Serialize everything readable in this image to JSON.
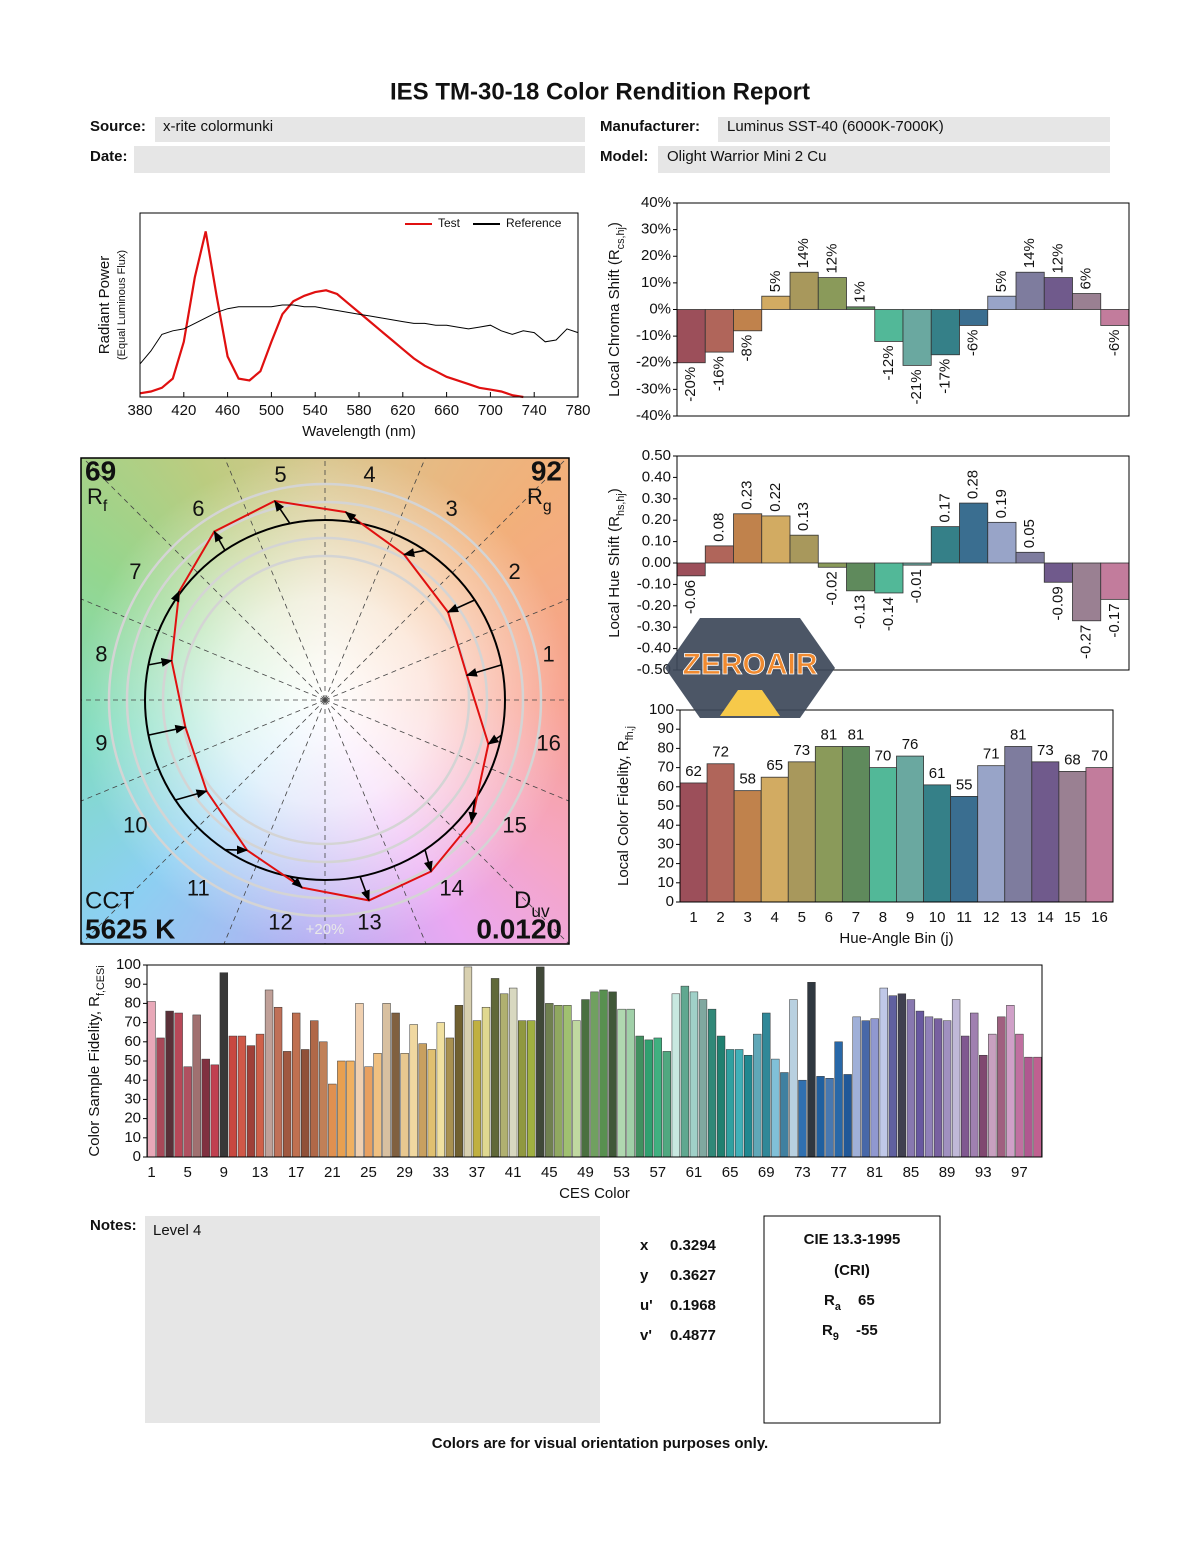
{
  "header": {
    "title": "IES TM-30-18 Color Rendition Report",
    "source_label": "Source:",
    "source": "x-rite colormunki",
    "manufacturer_label": "Manufacturer:",
    "manufacturer": "Luminus SST-40 (6000K-7000K)",
    "date_label": "Date:",
    "model_label": "Model:",
    "model": "Olight Warrior Mini 2 Cu"
  },
  "chart_data": [
    {
      "type": "line",
      "ylabel": "Radiant Power",
      "ylabel_sub": "(Equal Luminous Flux)",
      "xlabel": "Wavelength (nm)",
      "x": [
        380,
        390,
        400,
        410,
        420,
        430,
        440,
        450,
        460,
        470,
        480,
        490,
        500,
        510,
        520,
        530,
        540,
        550,
        560,
        570,
        580,
        590,
        600,
        610,
        620,
        630,
        640,
        650,
        660,
        670,
        680,
        690,
        700,
        710,
        720,
        730,
        740,
        750,
        760,
        770,
        780
      ],
      "xlim": [
        380,
        780
      ],
      "xticks": [
        380,
        420,
        460,
        500,
        540,
        580,
        620,
        660,
        700,
        740,
        780
      ],
      "ylim": [
        0,
        1
      ],
      "legend": "upper right",
      "series": [
        {
          "name": "Test",
          "color": "#e01010",
          "values": [
            0.02,
            0.03,
            0.05,
            0.1,
            0.3,
            0.65,
            0.9,
            0.55,
            0.22,
            0.1,
            0.09,
            0.14,
            0.3,
            0.45,
            0.52,
            0.55,
            0.57,
            0.58,
            0.56,
            0.51,
            0.46,
            0.41,
            0.36,
            0.31,
            0.26,
            0.21,
            0.17,
            0.14,
            0.11,
            0.09,
            0.07,
            0.05,
            0.04,
            0.03,
            0.01,
            0,
            null,
            null,
            null,
            null,
            null
          ]
        },
        {
          "name": "Reference",
          "color": "#000000",
          "values": [
            0.18,
            0.25,
            0.34,
            0.36,
            0.37,
            0.4,
            0.43,
            0.46,
            0.48,
            0.49,
            0.49,
            0.49,
            0.49,
            0.5,
            0.5,
            0.49,
            0.49,
            0.48,
            0.47,
            0.46,
            0.45,
            0.44,
            0.43,
            0.42,
            0.41,
            0.4,
            0.4,
            0.39,
            0.39,
            0.38,
            0.37,
            0.38,
            0.39,
            0.36,
            0.34,
            0.36,
            0.35,
            0.3,
            0.31,
            0.37,
            0.35
          ]
        }
      ]
    },
    {
      "type": "bar",
      "ylabel": "Local Chroma Shift (R",
      "ylabel_sub": "cs,hj",
      "ylabel_end": ")",
      "label_orientation": "vertical",
      "values": [
        -20,
        -16,
        -8,
        5,
        14,
        12,
        1,
        -12,
        -21,
        -17,
        -6,
        5,
        14,
        12,
        6,
        -6
      ],
      "value_labels": [
        "-20%",
        "-16%",
        "-8%",
        "5%",
        "14%",
        "12%",
        "1%",
        "-12%",
        "-21%",
        "-17%",
        "-6%",
        "5%",
        "14%",
        "12%",
        "6%",
        "-6%"
      ],
      "colors": [
        "#9c4f5a",
        "#b0655a",
        "#c0824c",
        "#d2ab62",
        "#a8985c",
        "#8a9a5a",
        "#5f8a5c",
        "#52b898",
        "#6aa8a0",
        "#358088",
        "#3a6e90",
        "#98a4c8",
        "#7e7c9e",
        "#705a8c",
        "#9a8092",
        "#c27c9c"
      ],
      "ylim": [
        -40,
        40
      ],
      "yticks": [
        {
          "value": 40,
          "label": "40%"
        },
        {
          "value": 30,
          "label": "30%"
        },
        {
          "value": 20,
          "label": "20%"
        },
        {
          "value": 10,
          "label": "10%"
        },
        {
          "value": 0,
          "label": "0%"
        },
        {
          "value": -10,
          "label": "-10%"
        },
        {
          "value": -20,
          "label": "-20%"
        },
        {
          "value": -30,
          "label": "-30%"
        },
        {
          "value": -40,
          "label": "-40%"
        }
      ]
    },
    {
      "type": "bar",
      "ylabel": "Local Hue Shift (R",
      "ylabel_sub": "hs,hj",
      "ylabel_end": ")",
      "label_orientation": "vertical",
      "values": [
        -0.06,
        0.08,
        0.23,
        0.22,
        0.13,
        -0.02,
        -0.13,
        -0.14,
        -0.01,
        0.17,
        0.28,
        0.19,
        0.05,
        -0.09,
        -0.27,
        -0.17
      ],
      "colors": [
        "#9c4f5a",
        "#b0655a",
        "#c0824c",
        "#d2ab62",
        "#a8985c",
        "#8a9a5a",
        "#5f8a5c",
        "#52b898",
        "#6aa8a0",
        "#358088",
        "#3a6e90",
        "#98a4c8",
        "#7e7c9e",
        "#705a8c",
        "#9a8092",
        "#c27c9c"
      ],
      "ylim": [
        -0.5,
        0.5
      ],
      "yticks": [
        {
          "value": 0.5,
          "label": "0.50"
        },
        {
          "value": 0.4,
          "label": "0.40"
        },
        {
          "value": 0.3,
          "label": "0.30"
        },
        {
          "value": 0.2,
          "label": "0.20"
        },
        {
          "value": 0.1,
          "label": "0.10"
        },
        {
          "value": 0,
          "label": "0.00"
        },
        {
          "value": -0.1,
          "label": "-0.10"
        },
        {
          "value": -0.2,
          "label": "-0.20"
        },
        {
          "value": -0.3,
          "label": "-0.30"
        },
        {
          "value": -0.4,
          "label": "-0.40"
        },
        {
          "value": -0.5,
          "label": "-0.50"
        }
      ]
    },
    {
      "type": "vector",
      "rf": 69,
      "rf_symbol": "R",
      "rf_sub": "f",
      "rg": 92,
      "rg_symbol": "R",
      "rg_sub": "g",
      "cct_label": "CCT",
      "cct": "5625 K",
      "duv_symbol": "D",
      "duv_sub": "uv",
      "duv": "0.0120",
      "bins": [
        1,
        2,
        3,
        4,
        5,
        6,
        7,
        8,
        9,
        10,
        11,
        12,
        13,
        14,
        15,
        16
      ],
      "scale_label": "+20%"
    },
    {
      "type": "bar",
      "ylabel": "Local Color Fidelity, R",
      "ylabel_sub": "fh,j",
      "xlabel": "Hue-Angle Bin (j)",
      "categories": [
        1,
        2,
        3,
        4,
        5,
        6,
        7,
        8,
        9,
        10,
        11,
        12,
        13,
        14,
        15,
        16
      ],
      "values": [
        62,
        72,
        58,
        65,
        73,
        81,
        81,
        70,
        76,
        61,
        55,
        71,
        81,
        73,
        68,
        70
      ],
      "colors": [
        "#9c4f5a",
        "#b0655a",
        "#c0824c",
        "#d2ab62",
        "#a8985c",
        "#8a9a5a",
        "#5f8a5c",
        "#52b898",
        "#6aa8a0",
        "#358088",
        "#3a6e90",
        "#98a4c8",
        "#7e7c9e",
        "#705a8c",
        "#9a8092",
        "#c27c9c"
      ],
      "ylim": [
        0,
        100
      ],
      "yticks": [
        0,
        10,
        20,
        30,
        40,
        50,
        60,
        70,
        80,
        90,
        100
      ]
    },
    {
      "type": "bar",
      "ylabel": "Color Sample Fidelity, R",
      "ylabel_sub": "f,CESi",
      "xlabel": "CES Color",
      "categories": [
        1,
        null,
        null,
        null,
        5,
        null,
        null,
        null,
        9,
        null,
        null,
        null,
        13,
        null,
        null,
        null,
        17,
        null,
        null,
        null,
        21,
        null,
        null,
        null,
        25,
        null,
        null,
        null,
        29,
        null,
        null,
        null,
        33,
        null,
        null,
        null,
        37,
        null,
        null,
        null,
        41,
        null,
        null,
        null,
        45,
        null,
        null,
        null,
        49,
        null,
        null,
        null,
        53,
        null,
        null,
        null,
        57,
        null,
        null,
        null,
        61,
        null,
        null,
        null,
        65,
        null,
        null,
        null,
        69,
        null,
        null,
        null,
        73,
        null,
        null,
        null,
        77,
        null,
        null,
        null,
        81,
        null,
        null,
        null,
        85,
        null,
        null,
        null,
        89,
        null,
        null,
        null,
        93,
        null,
        null,
        null,
        97,
        null,
        null
      ],
      "values": [
        81,
        62,
        76,
        75,
        47,
        74,
        51,
        48,
        96,
        63,
        63,
        58,
        64,
        87,
        78,
        55,
        75,
        56,
        71,
        60,
        38,
        50,
        50,
        80,
        47,
        54,
        80,
        75,
        54,
        69,
        59,
        56,
        70,
        62,
        79,
        99,
        71,
        78,
        93,
        85,
        88,
        71,
        71,
        99,
        80,
        79,
        79,
        71,
        82,
        86,
        87,
        86,
        77,
        77,
        63,
        61,
        62,
        55,
        85,
        89,
        86,
        82,
        77,
        63,
        56,
        56,
        53,
        64,
        75,
        51,
        44,
        82,
        40,
        91,
        42,
        41,
        60,
        43,
        73,
        71,
        72,
        88,
        84,
        85,
        82,
        76,
        73,
        72,
        71,
        82,
        63,
        75,
        53,
        64,
        73,
        79,
        64,
        52,
        52
      ],
      "colors": [
        "#e8a8b8",
        "#a84858",
        "#5a3038",
        "#b84858",
        "#b05060",
        "#a07070",
        "#803040",
        "#c04050",
        "#383838",
        "#c84840",
        "#d05848",
        "#a04038",
        "#d06048",
        "#c0a098",
        "#c07058",
        "#a05840",
        "#c07050",
        "#905038",
        "#b06848",
        "#c08058",
        "#e09050",
        "#e8a050",
        "#f0b060",
        "#f0d0b0",
        "#e8a060",
        "#f0c080",
        "#d8c0a0",
        "#806040",
        "#e8c890",
        "#f0d8a0",
        "#c8a060",
        "#e0c070",
        "#f0e0a0",
        "#a89050",
        "#706030",
        "#d8d0b0",
        "#c0b040",
        "#e0d890",
        "#606838",
        "#b0b070",
        "#d8d8c0",
        "#909840",
        "#a0b040",
        "#404838",
        "#708050",
        "#90a860",
        "#a0c070",
        "#c0d8a0",
        "#4a7040",
        "#70a060",
        "#589050",
        "#405838",
        "#b0d8b0",
        "#a0d0a8",
        "#409060",
        "#30a070",
        "#40b080",
        "#50a880",
        "#c8e8e0",
        "#60a890",
        "#a0d0c8",
        "#80a8a0",
        "#308878",
        "#208070",
        "#30a0a0",
        "#40b0b8",
        "#208890",
        "#60a8b8",
        "#308898",
        "#80c0d8",
        "#4080a0",
        "#b8d0e0",
        "#3070b0",
        "#303840",
        "#2060a0",
        "#4878b0",
        "#2868a8",
        "#205898",
        "#a0b0d8",
        "#4868a8",
        "#9098d0",
        "#c0c8e8",
        "#6060a0",
        "#404050",
        "#8878b0",
        "#6858a0",
        "#9080b8",
        "#7860a0",
        "#a090c0",
        "#c0b8d8",
        "#805890",
        "#a080b0",
        "#804870",
        "#c8a0c0",
        "#a06080",
        "#d0a0c8",
        "#c070a0",
        "#b05890",
        "#c06090"
      ],
      "ylim": [
        0,
        100
      ],
      "yticks": [
        0,
        10,
        20,
        30,
        40,
        50,
        60,
        70,
        80,
        90,
        100
      ]
    }
  ],
  "watermark": "ZEROAIR",
  "footer": {
    "notes_label": "Notes:",
    "notes": "Level 4",
    "coords": [
      {
        "label": "x",
        "value": 0.3294
      },
      {
        "label": "y",
        "value": 0.3627
      },
      {
        "label": "u'",
        "value": 0.1968
      },
      {
        "label": "v'",
        "value": 0.4877
      }
    ],
    "cri": {
      "title": "CIE 13.3-1995",
      "subtitle": "(CRI)",
      "ra_symbol": "R",
      "ra_sub": "a",
      "ra": 65,
      "r9_symbol": "R",
      "r9_sub": "9",
      "r9": -55
    },
    "disclaimer": "Colors are for visual orientation purposes only."
  }
}
